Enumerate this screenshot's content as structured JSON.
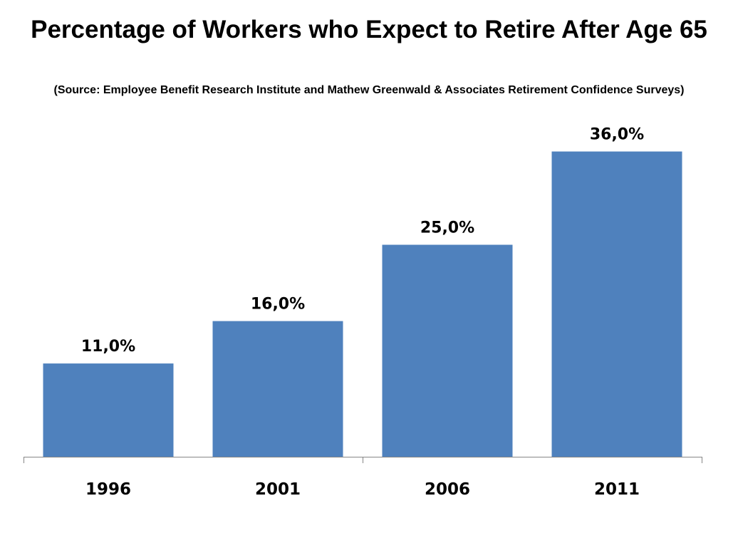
{
  "chart_data": {
    "type": "bar",
    "title": "Percentage of Workers who Expect to Retire After Age 65",
    "subtitle": "(Source: Employee Benefit Research Institute and Mathew Greenwald & Associates Retirement Confidence Surveys)",
    "categories": [
      "1996",
      "2001",
      "2006",
      "2011"
    ],
    "values": [
      11.0,
      16.0,
      25.0,
      36.0
    ],
    "data_labels": [
      "11,0%",
      "16,0%",
      "25,0%",
      "36,0%"
    ],
    "xlabel": "",
    "ylabel": "",
    "ylim": [
      0,
      40
    ],
    "grid": false,
    "legend": "none",
    "bar_color": "#4F81BD"
  }
}
